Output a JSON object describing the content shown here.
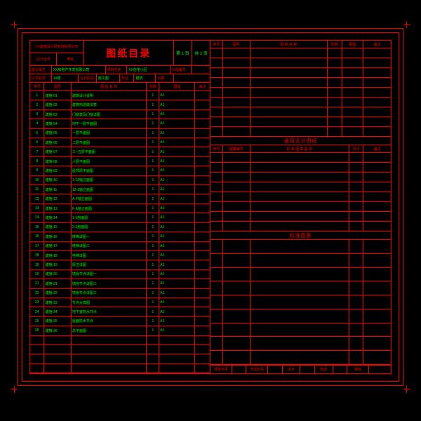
{
  "title": "图纸目录",
  "colors": {
    "line": "#ff0000",
    "text_red": "#ff0000",
    "text_green": "#00ff00",
    "background": "#000000"
  },
  "title_block": {
    "company_top": "XX建筑设计研究院有限公司",
    "company_bot_l": "设计证号",
    "company_bot_r": "甲级",
    "page_ref_1": "第 1 页",
    "page_ref_2": "共 1 页"
  },
  "info_row1": {
    "l1": "建设单位",
    "v1": "XX房地产开发有限公司",
    "l2": "项目名称",
    "v2": "XX住宅小区",
    "l3": "工程编号",
    "v3": ""
  },
  "info_row2": {
    "l1": "子项名称",
    "v1": "1#楼",
    "l2": "设计阶段",
    "v2": "施工图",
    "l3": "专业",
    "v3": "建筑",
    "l4": "日期",
    "v4": ""
  },
  "columns": {
    "seq": "序号",
    "code": "图号",
    "name": "图 纸 名 称",
    "pages": "张数",
    "standard": "图幅",
    "note": "备注"
  },
  "rows": [
    {
      "seq": "1",
      "code": "建施-01",
      "name": "建筑设计说明",
      "pg": "1",
      "std": "A1"
    },
    {
      "seq": "2",
      "code": "建施-02",
      "name": "建筑构造做法表",
      "pg": "1",
      "std": "A1"
    },
    {
      "seq": "3",
      "code": "建施-03",
      "name": "门窗表及门窗详图",
      "pg": "1",
      "std": "A1"
    },
    {
      "seq": "4",
      "code": "建施-04",
      "name": "地下一层平面图",
      "pg": "1",
      "std": "A1"
    },
    {
      "seq": "5",
      "code": "建施-05",
      "name": "一层平面图",
      "pg": "1",
      "std": "A1"
    },
    {
      "seq": "6",
      "code": "建施-06",
      "name": "二层平面图",
      "pg": "1",
      "std": "A1"
    },
    {
      "seq": "7",
      "code": "建施-07",
      "name": "三~五层平面图",
      "pg": "1",
      "std": "A1"
    },
    {
      "seq": "8",
      "code": "建施-08",
      "name": "六层平面图",
      "pg": "1",
      "std": "A1"
    },
    {
      "seq": "9",
      "code": "建施-09",
      "name": "屋顶层平面图",
      "pg": "1",
      "std": "A1"
    },
    {
      "seq": "10",
      "code": "建施-10",
      "name": "1-12轴立面图",
      "pg": "1",
      "std": "A1"
    },
    {
      "seq": "11",
      "code": "建施-11",
      "name": "12-1轴立面图",
      "pg": "1",
      "std": "A1"
    },
    {
      "seq": "12",
      "code": "建施-12",
      "name": "A-F轴立面图",
      "pg": "1",
      "std": "A1"
    },
    {
      "seq": "13",
      "code": "建施-13",
      "name": "F-A轴立面图",
      "pg": "1",
      "std": "A1"
    },
    {
      "seq": "14",
      "code": "建施-14",
      "name": "1-1剖面图",
      "pg": "1",
      "std": "A1"
    },
    {
      "seq": "15",
      "code": "建施-15",
      "name": "2-2剖面图",
      "pg": "1",
      "std": "A1"
    },
    {
      "seq": "16",
      "code": "建施-16",
      "name": "楼梯详图一",
      "pg": "1",
      "std": "A1"
    },
    {
      "seq": "17",
      "code": "建施-17",
      "name": "楼梯详图二",
      "pg": "1",
      "std": "A1"
    },
    {
      "seq": "18",
      "code": "建施-18",
      "name": "电梯详图",
      "pg": "1",
      "std": "A1"
    },
    {
      "seq": "19",
      "code": "建施-19",
      "name": "厨卫详图",
      "pg": "1",
      "std": "A1"
    },
    {
      "seq": "20",
      "code": "建施-20",
      "name": "墙身节点详图一",
      "pg": "1",
      "std": "A1"
    },
    {
      "seq": "21",
      "code": "建施-21",
      "name": "墙身节点详图二",
      "pg": "1",
      "std": "A1"
    },
    {
      "seq": "22",
      "code": "建施-22",
      "name": "墙身节点详图三",
      "pg": "1",
      "std": "A1"
    },
    {
      "seq": "23",
      "code": "建施-23",
      "name": "节点大样图",
      "pg": "1",
      "std": "A1"
    },
    {
      "seq": "24",
      "code": "建施-24",
      "name": "地下室防水节点",
      "pg": "1",
      "std": "A1"
    },
    {
      "seq": "25",
      "code": "建施-25",
      "name": "屋面防水节点",
      "pg": "1",
      "std": "A1"
    },
    {
      "seq": "26",
      "code": "建施-26",
      "name": "总平面图",
      "pg": "1",
      "std": "A1"
    }
  ],
  "right_top_cols": {
    "seq": "序号",
    "code": "图号",
    "name": "图 纸 名 称",
    "pg": "张数",
    "std": "图幅",
    "note": "备注"
  },
  "section2_title": "通用设计图纸",
  "section2_cols": {
    "seq": "序号",
    "code": "图集编号",
    "name": "标 准 图 集 名 称",
    "pg": "页次",
    "note": "备注"
  },
  "section3_title": "标准图集",
  "footer": {
    "l1": "项目负责",
    "v1": "",
    "l2": "专业负责",
    "v2": "",
    "l3": "设计",
    "v3": "",
    "l4": "校对",
    "v4": "",
    "l5": "审核",
    "v5": ""
  }
}
